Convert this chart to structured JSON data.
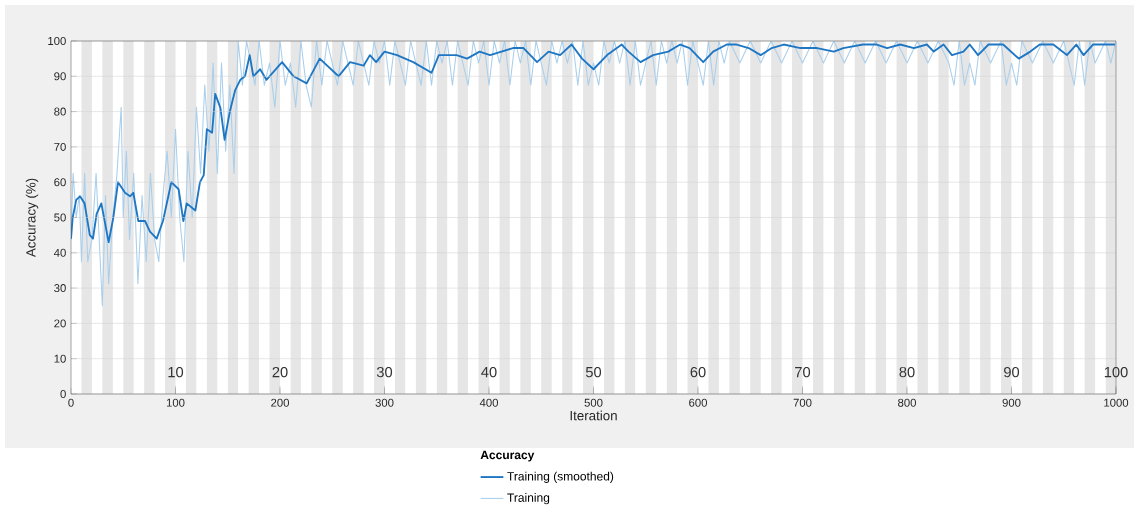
{
  "chart_data": {
    "type": "line",
    "xlabel": "Iteration",
    "ylabel": "Accuracy (%)",
    "legend_title": "Accuracy",
    "xlim": [
      0,
      1000
    ],
    "xticks": [
      0,
      100,
      200,
      300,
      400,
      500,
      600,
      700,
      800,
      900,
      1000
    ],
    "ylim": [
      0,
      100
    ],
    "yticks": [
      0,
      10,
      20,
      30,
      40,
      50,
      60,
      70,
      80,
      90,
      100
    ],
    "x2lim": [
      0,
      100
    ],
    "x2ticks": [
      10,
      20,
      30,
      40,
      50,
      60,
      70,
      80,
      90,
      100
    ],
    "grid": "y",
    "legend": "bottom",
    "bands": [
      {
        "axis": "x",
        "from": 10,
        "to": 20,
        "color": "#e6e6e6"
      },
      {
        "axis": "x",
        "from": 30,
        "to": 40,
        "color": "#e6e6e6"
      },
      {
        "axis": "x",
        "from": 50,
        "to": 60,
        "color": "#e6e6e6"
      },
      {
        "axis": "x",
        "from": 70,
        "to": 80,
        "color": "#e6e6e6"
      },
      {
        "axis": "x",
        "from": 90,
        "to": 100,
        "color": "#e6e6e6"
      },
      {
        "axis": "x",
        "from": 110,
        "to": 120,
        "color": "#e6e6e6"
      },
      {
        "axis": "x",
        "from": 130,
        "to": 140,
        "color": "#e6e6e6"
      },
      {
        "axis": "x",
        "from": 150,
        "to": 160,
        "color": "#e6e6e6"
      },
      {
        "axis": "x",
        "from": 170,
        "to": 180,
        "color": "#e6e6e6"
      },
      {
        "axis": "x",
        "from": 190,
        "to": 200,
        "color": "#e6e6e6"
      },
      {
        "axis": "x",
        "from": 210,
        "to": 220,
        "color": "#e6e6e6"
      },
      {
        "axis": "x",
        "from": 230,
        "to": 240,
        "color": "#e6e6e6"
      },
      {
        "axis": "x",
        "from": 250,
        "to": 260,
        "color": "#e6e6e6"
      },
      {
        "axis": "x",
        "from": 270,
        "to": 280,
        "color": "#e6e6e6"
      },
      {
        "axis": "x",
        "from": 290,
        "to": 300,
        "color": "#e6e6e6"
      },
      {
        "axis": "x",
        "from": 310,
        "to": 320,
        "color": "#e6e6e6"
      },
      {
        "axis": "x",
        "from": 330,
        "to": 340,
        "color": "#e6e6e6"
      },
      {
        "axis": "x",
        "from": 350,
        "to": 360,
        "color": "#e6e6e6"
      },
      {
        "axis": "x",
        "from": 370,
        "to": 380,
        "color": "#e6e6e6"
      },
      {
        "axis": "x",
        "from": 390,
        "to": 400,
        "color": "#e6e6e6"
      },
      {
        "axis": "x",
        "from": 410,
        "to": 420,
        "color": "#e6e6e6"
      },
      {
        "axis": "x",
        "from": 430,
        "to": 440,
        "color": "#e6e6e6"
      },
      {
        "axis": "x",
        "from": 450,
        "to": 460,
        "color": "#e6e6e6"
      },
      {
        "axis": "x",
        "from": 470,
        "to": 480,
        "color": "#e6e6e6"
      },
      {
        "axis": "x",
        "from": 490,
        "to": 500,
        "color": "#e6e6e6"
      },
      {
        "axis": "x",
        "from": 510,
        "to": 520,
        "color": "#e6e6e6"
      },
      {
        "axis": "x",
        "from": 530,
        "to": 540,
        "color": "#e6e6e6"
      },
      {
        "axis": "x",
        "from": 550,
        "to": 560,
        "color": "#e6e6e6"
      },
      {
        "axis": "x",
        "from": 570,
        "to": 580,
        "color": "#e6e6e6"
      },
      {
        "axis": "x",
        "from": 590,
        "to": 600,
        "color": "#e6e6e6"
      },
      {
        "axis": "x",
        "from": 610,
        "to": 620,
        "color": "#e6e6e6"
      },
      {
        "axis": "x",
        "from": 630,
        "to": 640,
        "color": "#e6e6e6"
      },
      {
        "axis": "x",
        "from": 650,
        "to": 660,
        "color": "#e6e6e6"
      },
      {
        "axis": "x",
        "from": 670,
        "to": 680,
        "color": "#e6e6e6"
      },
      {
        "axis": "x",
        "from": 690,
        "to": 700,
        "color": "#e6e6e6"
      },
      {
        "axis": "x",
        "from": 710,
        "to": 720,
        "color": "#e6e6e6"
      },
      {
        "axis": "x",
        "from": 730,
        "to": 740,
        "color": "#e6e6e6"
      },
      {
        "axis": "x",
        "from": 750,
        "to": 760,
        "color": "#e6e6e6"
      },
      {
        "axis": "x",
        "from": 770,
        "to": 780,
        "color": "#e6e6e6"
      },
      {
        "axis": "x",
        "from": 790,
        "to": 800,
        "color": "#e6e6e6"
      },
      {
        "axis": "x",
        "from": 810,
        "to": 820,
        "color": "#e6e6e6"
      },
      {
        "axis": "x",
        "from": 830,
        "to": 840,
        "color": "#e6e6e6"
      },
      {
        "axis": "x",
        "from": 850,
        "to": 860,
        "color": "#e6e6e6"
      },
      {
        "axis": "x",
        "from": 870,
        "to": 880,
        "color": "#e6e6e6"
      },
      {
        "axis": "x",
        "from": 890,
        "to": 900,
        "color": "#e6e6e6"
      },
      {
        "axis": "x",
        "from": 910,
        "to": 920,
        "color": "#e6e6e6"
      },
      {
        "axis": "x",
        "from": 930,
        "to": 940,
        "color": "#e6e6e6"
      },
      {
        "axis": "x",
        "from": 950,
        "to": 960,
        "color": "#e6e6e6"
      },
      {
        "axis": "x",
        "from": 970,
        "to": 980,
        "color": "#e6e6e6"
      },
      {
        "axis": "x",
        "from": 990,
        "to": 1000,
        "color": "#e6e6e6"
      }
    ],
    "series": [
      {
        "name": "Training",
        "color": "#a9cfec",
        "x": [
          0,
          2,
          5,
          8,
          10,
          13,
          16,
          20,
          24,
          27,
          30,
          33,
          36,
          40,
          44,
          48,
          50,
          53,
          56,
          60,
          64,
          68,
          72,
          76,
          80,
          84,
          88,
          92,
          96,
          100,
          104,
          108,
          112,
          116,
          120,
          124,
          128,
          132,
          136,
          140,
          144,
          148,
          152,
          156,
          160,
          164,
          168,
          172,
          176,
          180,
          185,
          190,
          195,
          200,
          205,
          210,
          215,
          220,
          225,
          230,
          235,
          240,
          245,
          250,
          255,
          260,
          265,
          270,
          275,
          280,
          285,
          290,
          295,
          300,
          305,
          310,
          315,
          320,
          325,
          330,
          335,
          340,
          345,
          350,
          355,
          360,
          365,
          370,
          375,
          380,
          385,
          390,
          395,
          400,
          405,
          410,
          415,
          420,
          425,
          430,
          435,
          440,
          445,
          450,
          455,
          460,
          465,
          470,
          475,
          480,
          485,
          490,
          495,
          500,
          505,
          510,
          515,
          520,
          525,
          530,
          535,
          540,
          545,
          550,
          555,
          560,
          565,
          570,
          575,
          580,
          585,
          590,
          595,
          600,
          605,
          610,
          615,
          620,
          625,
          630,
          640,
          650,
          660,
          670,
          680,
          690,
          700,
          710,
          720,
          730,
          740,
          750,
          760,
          770,
          780,
          790,
          800,
          810,
          820,
          830,
          840,
          845,
          850,
          855,
          860,
          865,
          870,
          880,
          890,
          895,
          900,
          905,
          910,
          920,
          930,
          940,
          950,
          960,
          965,
          970,
          975,
          980,
          990,
          995,
          1000
        ],
        "values": [
          43.75,
          62.5,
          50,
          56.25,
          37.5,
          62.5,
          37.5,
          43.75,
          62.5,
          43.75,
          25,
          56.25,
          31.25,
          50,
          62.5,
          81.25,
          50,
          68.75,
          43.75,
          62.5,
          31.25,
          56.25,
          37.5,
          62.5,
          43.75,
          37.5,
          56.25,
          68.75,
          50,
          75,
          50,
          37.5,
          68.75,
          50,
          81.25,
          62.5,
          87.5,
          68.75,
          93.75,
          62.5,
          93.75,
          68.75,
          87.5,
          62.5,
          100,
          87.5,
          100,
          93.75,
          87.5,
          100,
          87.5,
          93.75,
          81.25,
          100,
          87.5,
          93.75,
          81.25,
          100,
          87.5,
          81.25,
          100,
          87.5,
          100,
          93.75,
          87.5,
          100,
          93.75,
          87.5,
          100,
          93.75,
          87.5,
          100,
          93.75,
          100,
          87.5,
          100,
          93.75,
          87.5,
          100,
          93.75,
          87.5,
          100,
          87.5,
          100,
          93.75,
          100,
          87.5,
          100,
          93.75,
          87.5,
          100,
          93.75,
          100,
          87.5,
          100,
          93.75,
          100,
          87.5,
          100,
          93.75,
          100,
          87.5,
          100,
          93.75,
          87.5,
          100,
          93.75,
          100,
          93.75,
          100,
          87.5,
          100,
          87.5,
          93.75,
          87.5,
          100,
          93.75,
          100,
          93.75,
          100,
          87.5,
          100,
          87.5,
          93.75,
          100,
          87.5,
          100,
          93.75,
          100,
          93.75,
          100,
          87.5,
          100,
          93.75,
          87.5,
          100,
          87.5,
          100,
          93.75,
          100,
          93.75,
          100,
          93.75,
          100,
          93.75,
          100,
          93.75,
          100,
          93.75,
          100,
          93.75,
          100,
          93.75,
          100,
          93.75,
          100,
          93.75,
          100,
          93.75,
          100,
          93.75,
          87.5,
          100,
          87.5,
          93.75,
          87.5,
          100,
          93.75,
          100,
          87.5,
          93.75,
          87.5,
          100,
          93.75,
          100,
          93.75,
          100,
          87.5,
          100,
          87.5,
          100,
          93.75,
          100,
          93.75,
          100
        ]
      },
      {
        "name": "Training (smoothed)",
        "color": "#1f77c4",
        "x": [
          0,
          1.6,
          5,
          8.6,
          13,
          18,
          21,
          24.5,
          29,
          36,
          40.5,
          45,
          51.7,
          56.5,
          59.6,
          64.4,
          70.8,
          75.6,
          82,
          88,
          96,
          103,
          107.5,
          110.7,
          119,
          123.4,
          127,
          130,
          135,
          138,
          143,
          147,
          152,
          157,
          162,
          166.5,
          171,
          174.5,
          181,
          187,
          202,
          213,
          225.5,
          238,
          256,
          267,
          280,
          286,
          292,
          300,
          312,
          327.5,
          345,
          352,
          369,
          379,
          391,
          401,
          423,
          433,
          446,
          457,
          468,
          479,
          489,
          500,
          513,
          527,
          533.5,
          545,
          557,
          571.5,
          583,
          592,
          605,
          614.5,
          627.5,
          637,
          648.5,
          660,
          670.5,
          682,
          698,
          714,
          730,
          739,
          758,
          771,
          781,
          793.5,
          806.6,
          819,
          825.6,
          835,
          843,
          854,
          860,
          868,
          878,
          892,
          907,
          918,
          927,
          940,
          953,
          962,
          969,
          978,
          988,
          994,
          999
        ],
        "values": [
          44,
          50,
          55,
          56,
          54,
          45,
          44,
          51,
          54,
          43,
          50,
          60,
          57,
          56,
          57,
          49,
          49,
          46,
          44,
          49,
          60,
          58,
          49,
          54,
          52,
          60,
          62,
          75,
          74,
          85,
          81,
          72,
          80,
          86,
          89,
          90,
          96,
          90,
          92,
          89,
          94,
          90,
          88,
          95,
          90,
          94,
          93,
          96,
          94,
          97,
          96,
          94,
          91,
          96,
          96,
          95,
          97,
          96,
          98,
          98,
          94,
          97,
          96,
          99,
          95,
          92,
          96,
          99,
          97,
          94,
          96,
          97,
          99,
          98,
          94,
          97,
          99,
          99,
          98,
          96,
          98,
          99,
          98,
          98,
          97,
          98,
          99,
          99,
          98,
          99,
          98,
          99,
          97,
          99,
          96,
          97,
          99,
          96,
          99,
          99,
          95,
          97,
          99,
          99,
          96,
          99,
          96,
          99,
          99,
          99,
          99
        ]
      }
    ]
  }
}
